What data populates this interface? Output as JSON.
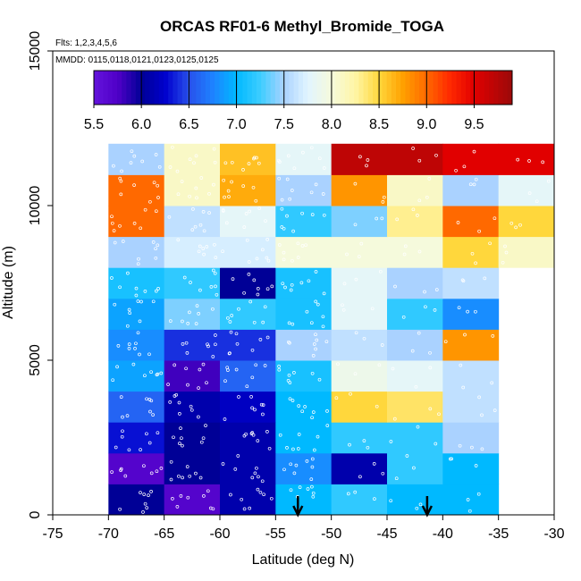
{
  "chart_data": {
    "type": "heatmap",
    "title": "ORCAS RF01-6 Methyl_Bromide_TOGA",
    "flights_note": "Flts: 1,2,3,4,5,6",
    "dates_note": "MMDD: 0115,0118,0121,0123,0125,0125",
    "xlabel": "Latitude (deg N)",
    "ylabel": "Altitude (m)",
    "xlim": [
      -75,
      -30
    ],
    "ylim": [
      0,
      15000
    ],
    "x_ticks": [
      -75,
      -70,
      -65,
      -60,
      -55,
      -50,
      -45,
      -40,
      -35,
      -30
    ],
    "x_tick_labels": [
      "-75",
      "-70",
      "-65",
      "-60",
      "-55",
      "-50",
      "-45",
      "-40",
      "-35",
      "-30"
    ],
    "y_ticks": [
      0,
      5000,
      10000,
      15000
    ],
    "y_tick_labels": [
      "0",
      "5000",
      "10000",
      "15000"
    ],
    "colorbar": {
      "range": [
        5.5,
        9.9
      ],
      "ticks": [
        5.5,
        6.0,
        6.5,
        7.0,
        7.5,
        8.0,
        8.5,
        9.0,
        9.5
      ],
      "tick_labels": [
        "5.5",
        "6.0",
        "6.5",
        "7.0",
        "7.5",
        "8.0",
        "8.5",
        "9.0",
        "9.5"
      ]
    },
    "x_bin_edges": [
      -70,
      -65,
      -60,
      -55,
      -50,
      -45,
      -40,
      -35,
      -30
    ],
    "y_bin_edges": [
      0,
      1000,
      2000,
      3000,
      4000,
      5000,
      6000,
      7000,
      8000,
      9000,
      10000,
      11000,
      12000
    ],
    "values": [
      [
        6.0,
        5.7,
        6.1,
        7.0,
        7.2,
        7.0,
        7.0,
        null
      ],
      [
        5.7,
        6.0,
        6.1,
        6.8,
        6.1,
        7.2,
        7.0,
        null
      ],
      [
        6.3,
        6.0,
        6.1,
        7.0,
        7.2,
        7.2,
        7.5,
        null
      ],
      [
        6.6,
        6.1,
        6.2,
        7.0,
        8.5,
        8.4,
        7.6,
        null
      ],
      [
        6.9,
        5.8,
        6.6,
        7.1,
        7.9,
        7.8,
        7.6,
        null
      ],
      [
        6.8,
        6.4,
        6.4,
        7.5,
        7.6,
        7.5,
        8.8,
        null
      ],
      [
        6.9,
        7.4,
        7.2,
        7.1,
        7.8,
        7.2,
        6.8,
        null
      ],
      [
        7.1,
        7.2,
        6.0,
        7.1,
        7.8,
        7.5,
        7.6,
        null
      ],
      [
        7.5,
        7.7,
        7.7,
        8.0,
        8.0,
        8.0,
        8.5,
        8.1
      ],
      [
        9.0,
        7.6,
        7.8,
        7.2,
        7.4,
        8.3,
        9.0,
        8.5
      ],
      [
        9.0,
        8.1,
        8.7,
        7.5,
        8.8,
        8.1,
        7.5,
        7.8
      ],
      [
        7.5,
        8.1,
        8.6,
        7.8,
        9.7,
        9.7,
        9.5,
        9.5
      ]
    ],
    "arrows_at_latitude": [
      -53,
      -41.4
    ]
  }
}
